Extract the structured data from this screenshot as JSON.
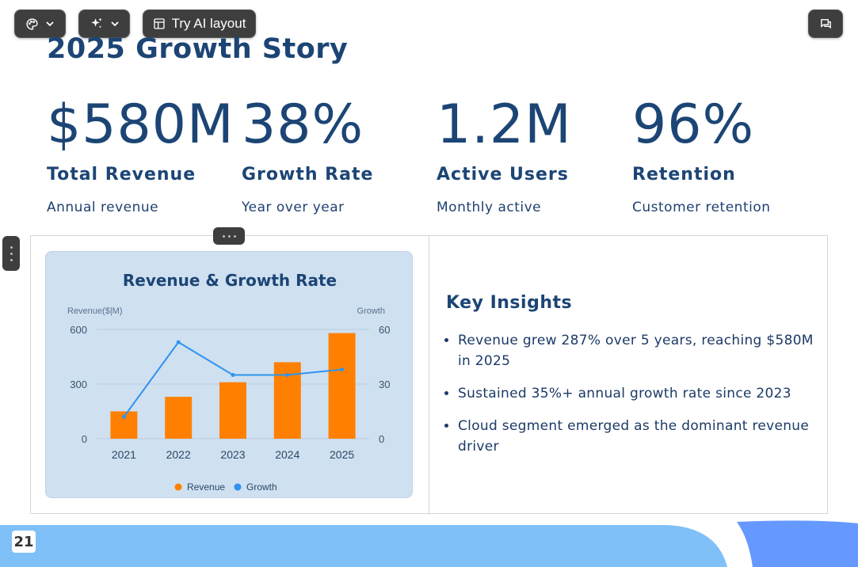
{
  "toolbar": {
    "try_ai_layout_label": "Try AI layout"
  },
  "slide": {
    "title": "2025 Growth Story",
    "page_number": "21",
    "stats": [
      {
        "value": "$580M",
        "label": "Total Revenue",
        "sub": "Annual revenue"
      },
      {
        "value": "38%",
        "label": "Growth Rate",
        "sub": "Year over year"
      },
      {
        "value": "1.2M",
        "label": "Active Users",
        "sub": "Monthly active"
      },
      {
        "value": "96%",
        "label": "Retention",
        "sub": "Customer retention"
      }
    ],
    "insights": {
      "heading": "Key Insights",
      "items": [
        "Revenue grew 287% over 5 years, reaching $580M in 2025",
        "Sustained 35%+ annual growth rate since 2023",
        "Cloud segment emerged as the dominant revenue driver"
      ]
    }
  },
  "colors": {
    "bar": "#ff8000",
    "line": "#2f93f0",
    "title": "#1c4575",
    "wave_light": "#7fc0f8",
    "wave_dark": "#6699ff"
  },
  "chart_data": {
    "type": "bar",
    "title": "Revenue & Growth Rate",
    "categories": [
      "2021",
      "2022",
      "2023",
      "2024",
      "2025"
    ],
    "ylabel": "Revenue($|M)",
    "y2label": "Growth",
    "ylim": [
      0,
      600
    ],
    "y2lim": [
      0,
      60
    ],
    "yticks": [
      "600",
      "300",
      "0"
    ],
    "y2ticks": [
      "60",
      "30",
      "0"
    ],
    "series": [
      {
        "name": "Revenue",
        "type": "bar",
        "axis": "left",
        "values": [
          150,
          230,
          310,
          420,
          580
        ]
      },
      {
        "name": "Growth",
        "type": "line",
        "axis": "right",
        "values": [
          12,
          53,
          35,
          35,
          38
        ]
      }
    ],
    "legend": "bottom"
  }
}
